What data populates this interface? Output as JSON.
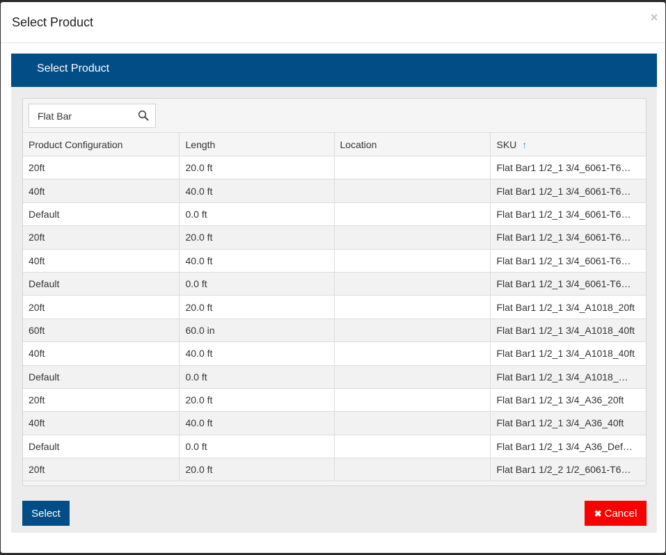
{
  "modal": {
    "title": "Select Product",
    "close_symbol": "×"
  },
  "panel": {
    "title": "Select Product"
  },
  "search": {
    "value": "Flat Bar",
    "icon": "search-icon"
  },
  "table": {
    "columns": [
      "Product Configuration",
      "Length",
      "Location",
      "SKU"
    ],
    "sort_indicator": "↑",
    "rows": [
      [
        "20ft",
        "20.0 ft",
        "",
        "Flat Bar1 1/2_1 3/4_6061-T6…"
      ],
      [
        "40ft",
        "40.0 ft",
        "",
        "Flat Bar1 1/2_1 3/4_6061-T6…"
      ],
      [
        "Default",
        "0.0 ft",
        "",
        "Flat Bar1 1/2_1 3/4_6061-T6…"
      ],
      [
        "20ft",
        "20.0 ft",
        "",
        "Flat Bar1 1/2_1 3/4_6061-T6…"
      ],
      [
        "40ft",
        "40.0 ft",
        "",
        "Flat Bar1 1/2_1 3/4_6061-T6…"
      ],
      [
        "Default",
        "0.0 ft",
        "",
        "Flat Bar1 1/2_1 3/4_6061-T6…"
      ],
      [
        "20ft",
        "20.0 ft",
        "",
        "Flat Bar1 1/2_1 3/4_A1018_20ft"
      ],
      [
        "60ft",
        "60.0 in",
        "",
        "Flat Bar1 1/2_1 3/4_A1018_40ft"
      ],
      [
        "40ft",
        "40.0 ft",
        "",
        "Flat Bar1 1/2_1 3/4_A1018_40ft"
      ],
      [
        "Default",
        "0.0 ft",
        "",
        "Flat Bar1 1/2_1 3/4_A1018_…"
      ],
      [
        "20ft",
        "20.0 ft",
        "",
        "Flat Bar1 1/2_1 3/4_A36_20ft"
      ],
      [
        "40ft",
        "40.0 ft",
        "",
        "Flat Bar1 1/2_1 3/4_A36_40ft"
      ],
      [
        "Default",
        "0.0 ft",
        "",
        "Flat Bar1 1/2_1 3/4_A36_Def…"
      ],
      [
        "20ft",
        "20.0 ft",
        "",
        "Flat Bar1 1/2_2 1/2_6061-T6…"
      ]
    ]
  },
  "footer": {
    "select_label": "Select",
    "cancel_label": "Cancel",
    "cancel_icon": "✖"
  },
  "colors": {
    "primary": "#034d87",
    "danger": "#fb0000",
    "sort_accent": "#3a8fd9"
  }
}
